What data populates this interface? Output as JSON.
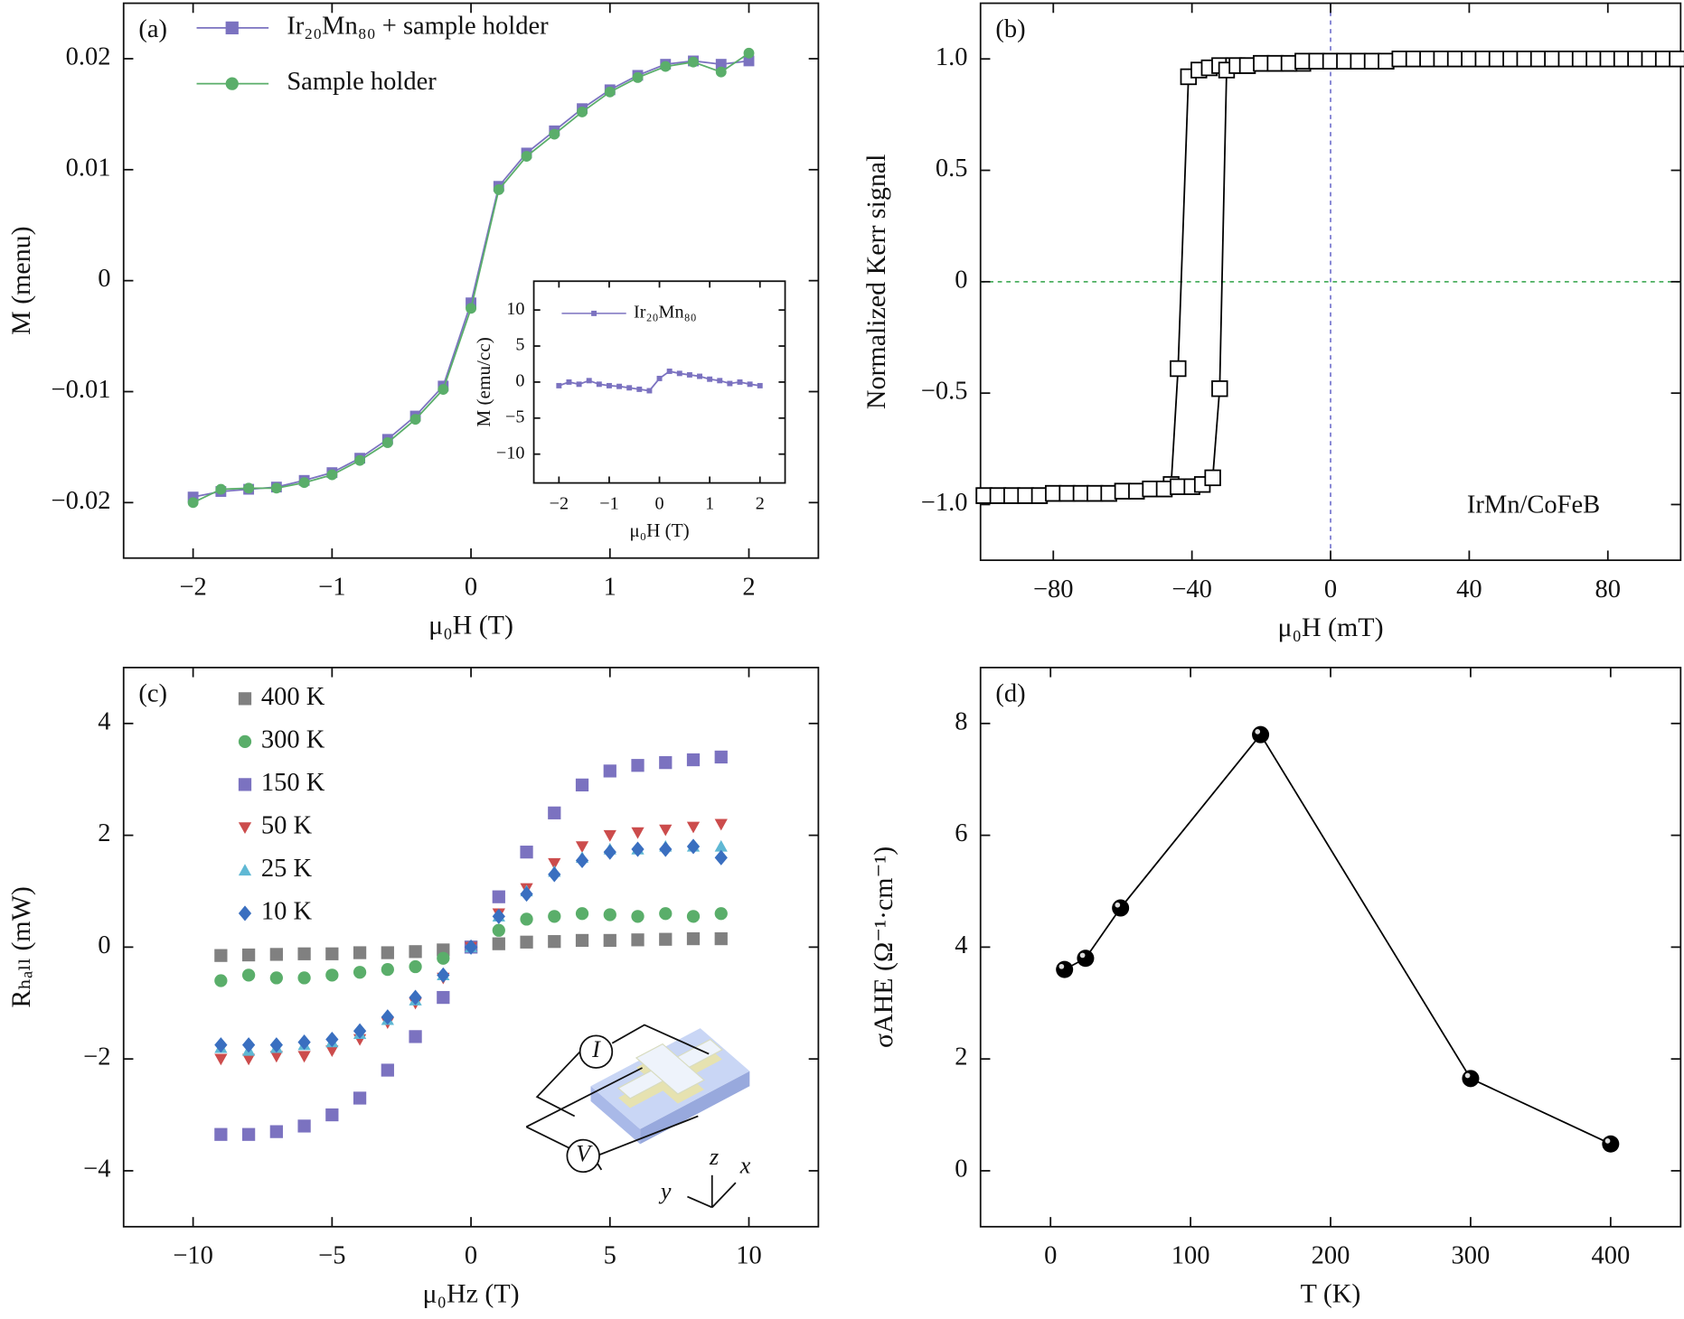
{
  "chart_data": [
    {
      "type": "line",
      "panel_label": "(a)",
      "xlabel": "μ₀H (T)",
      "ylabel": "M (menu)",
      "legend": "upper left",
      "marker_line": true,
      "x": [
        -2,
        -1.8,
        -1.6,
        -1.4,
        -1.2,
        -1,
        -0.8,
        -0.6,
        -0.4,
        -0.2,
        0,
        0.2,
        0.4,
        0.6,
        0.8,
        1,
        1.2,
        1.4,
        1.6,
        1.8,
        2
      ],
      "series": [
        {
          "name": "Ir₂₀Mn₈₀ + sample holder",
          "color": "#7b72c0",
          "marker": "square",
          "values": [
            -0.0195,
            -0.019,
            -0.0188,
            -0.0186,
            -0.018,
            -0.0173,
            -0.016,
            -0.0143,
            -0.0122,
            -0.0095,
            -0.002,
            0.0085,
            0.0115,
            0.0135,
            0.0155,
            0.0172,
            0.0185,
            0.0195,
            0.0198,
            0.0195,
            0.0198
          ]
        },
        {
          "name": "Sample holder",
          "color": "#5aae6a",
          "marker": "circle",
          "values": [
            -0.02,
            -0.0188,
            -0.0187,
            -0.0187,
            -0.0182,
            -0.0175,
            -0.0162,
            -0.0146,
            -0.0125,
            -0.0098,
            -0.0025,
            0.0082,
            0.0112,
            0.0132,
            0.0152,
            0.017,
            0.0183,
            0.0193,
            0.0197,
            0.0188,
            0.0205
          ]
        }
      ],
      "xlim": [
        -2.5,
        2.5
      ],
      "xticks": [
        {
          "value": -2,
          "label": "−2"
        },
        {
          "value": -1,
          "label": "−1"
        },
        0,
        1,
        2
      ],
      "ylim": [
        -0.025,
        0.025
      ],
      "yticks": [
        {
          "value": -0.02,
          "label": "−0.02"
        },
        {
          "value": -0.01,
          "label": "−0.01"
        },
        0,
        0.01,
        0.02
      ]
    },
    {
      "type": "line",
      "xlabel": "μ₀H (T)",
      "ylabel": "M (emu/cc)",
      "legend": "upper left",
      "marker_line": true,
      "x": [
        -2,
        -1.8,
        -1.6,
        -1.4,
        -1.2,
        -1,
        -0.8,
        -0.6,
        -0.4,
        -0.2,
        0,
        0.2,
        0.4,
        0.6,
        0.8,
        1,
        1.2,
        1.4,
        1.6,
        1.8,
        2
      ],
      "series": [
        {
          "name": "Ir₂₀Mn₈₀",
          "color": "#7b72c0",
          "marker": "square",
          "values": [
            -0.5,
            0,
            -0.3,
            0.2,
            -0.3,
            -0.5,
            -0.6,
            -0.8,
            -1,
            -1.2,
            0.5,
            1.5,
            1.2,
            1,
            0.8,
            0.4,
            0.2,
            -0.2,
            0,
            -0.3,
            -0.5
          ]
        }
      ],
      "xlim": [
        -2.5,
        2.5
      ],
      "xticks": [
        {
          "value": -2,
          "label": "−2"
        },
        {
          "value": -1,
          "label": "−1"
        },
        0,
        1,
        2
      ],
      "ylim": [
        -14,
        14
      ],
      "yticks": [
        {
          "value": -10,
          "label": "−10"
        },
        {
          "value": -5,
          "label": "−5"
        },
        0,
        5,
        10
      ]
    },
    {
      "type": "line",
      "panel_label": "(b)",
      "xlabel": "μ₀H (mT)",
      "ylabel": "Normalized Kerr signal",
      "annotation": "IrMn/CoFeB",
      "marker_line": true,
      "reference_lines": [
        {
          "axis": "x",
          "value": 0,
          "color": "#7b7bd0"
        },
        {
          "axis": "y",
          "value": 0,
          "color": "#4caf60"
        }
      ],
      "series": [
        {
          "color": "#000000",
          "marker": "open-square",
          "x": [
            -100,
            -96,
            -92,
            -88,
            -84,
            -80,
            -76,
            -72,
            -68,
            -64,
            -60,
            -56,
            -52,
            -48,
            -46,
            -44,
            -41,
            -38,
            -35,
            -32,
            -28,
            -24,
            -20,
            -16,
            -12,
            -8,
            -4,
            0,
            4,
            8,
            12,
            16,
            20,
            24,
            28,
            32,
            36,
            40,
            44,
            48,
            52,
            56,
            60,
            64,
            68,
            72,
            76,
            80,
            84,
            88,
            92,
            96,
            100
          ],
          "values": [
            -0.96,
            -0.96,
            -0.96,
            -0.96,
            -0.96,
            -0.95,
            -0.95,
            -0.95,
            -0.95,
            -0.95,
            -0.94,
            -0.94,
            -0.93,
            -0.93,
            -0.91,
            -0.39,
            0.92,
            0.95,
            0.96,
            0.97,
            0.97,
            0.97,
            0.98,
            0.98,
            0.98,
            0.98,
            0.99,
            0.99,
            0.99,
            0.99,
            0.99,
            0.99,
            1.0,
            1.0,
            1.0,
            1.0,
            1.0,
            1.0,
            1.0,
            1.0,
            1.0,
            1.0,
            1.0,
            1.0,
            1.0,
            1.0,
            1.0,
            1.0,
            1.0,
            1.0,
            1.0,
            1.0,
            1.0
          ]
        },
        {
          "color": "#000000",
          "marker": "open-square",
          "x": [
            -100,
            -96,
            -92,
            -88,
            -84,
            -80,
            -76,
            -72,
            -68,
            -64,
            -60,
            -56,
            -52,
            -48,
            -44,
            -40,
            -37,
            -34,
            -32,
            -30,
            -27,
            -24,
            -20,
            -16,
            -12,
            -8,
            -4,
            0,
            4,
            8,
            12,
            16,
            20,
            24,
            28,
            32,
            36,
            40,
            44,
            48,
            52,
            56,
            60,
            64,
            68,
            72,
            76,
            80,
            84,
            88,
            92,
            96,
            100
          ],
          "values": [
            -0.96,
            -0.96,
            -0.96,
            -0.96,
            -0.96,
            -0.95,
            -0.95,
            -0.95,
            -0.95,
            -0.95,
            -0.94,
            -0.94,
            -0.93,
            -0.93,
            -0.92,
            -0.92,
            -0.91,
            -0.88,
            -0.48,
            0.95,
            0.97,
            0.97,
            0.98,
            0.98,
            0.98,
            0.99,
            0.99,
            0.99,
            0.99,
            0.99,
            0.99,
            0.99,
            1.0,
            1.0,
            1.0,
            1.0,
            1.0,
            1.0,
            1.0,
            1.0,
            1.0,
            1.0,
            1.0,
            1.0,
            1.0,
            1.0,
            1.0,
            1.0,
            1.0,
            1.0,
            1.0,
            1.0,
            1.0
          ]
        }
      ],
      "xlim": [
        -101,
        101
      ],
      "xticks": [
        {
          "value": -80,
          "label": "−80"
        },
        {
          "value": -40,
          "label": "−40"
        },
        0,
        40,
        80
      ],
      "ylim": [
        -1.25,
        1.25
      ],
      "yticks": [
        {
          "value": -1,
          "label": "−1.0"
        },
        {
          "value": -0.5,
          "label": "−0.5"
        },
        0,
        0.5,
        {
          "value": 1,
          "label": "1.0"
        }
      ]
    },
    {
      "type": "scatter",
      "panel_label": "(c)",
      "xlabel": "μ₀Hz (T)",
      "ylabel": "Rₕₐₗₗ (mW)",
      "legend": "upper left",
      "diagram_labels": [
        "I",
        "V",
        "z",
        "x",
        "y"
      ],
      "x": [
        -9,
        -8,
        -7,
        -6,
        -5,
        -4,
        -3,
        -2,
        -1,
        0,
        1,
        2,
        3,
        4,
        5,
        6,
        7,
        8,
        9
      ],
      "series": [
        {
          "name": "400 K",
          "color": "#808080",
          "marker": "square",
          "values": [
            -0.15,
            -0.14,
            -0.13,
            -0.12,
            -0.12,
            -0.1,
            -0.1,
            -0.08,
            -0.05,
            0,
            0.06,
            0.09,
            0.1,
            0.12,
            0.12,
            0.13,
            0.14,
            0.15,
            0.15
          ]
        },
        {
          "name": "300 K",
          "color": "#5aae6a",
          "marker": "circle",
          "values": [
            -0.6,
            -0.5,
            -0.55,
            -0.55,
            -0.5,
            -0.45,
            -0.4,
            -0.35,
            -0.2,
            0,
            0.3,
            0.5,
            0.55,
            0.6,
            0.58,
            0.55,
            0.6,
            0.55,
            0.6
          ]
        },
        {
          "name": "150 K",
          "color": "#7b72c0",
          "marker": "square",
          "values": [
            -3.35,
            -3.35,
            -3.3,
            -3.2,
            -3.0,
            -2.7,
            -2.2,
            -1.6,
            -0.9,
            0,
            0.9,
            1.7,
            2.4,
            2.9,
            3.15,
            3.25,
            3.3,
            3.35,
            3.4
          ]
        },
        {
          "name": "50 K",
          "color": "#cc4c4c",
          "marker": "triangle-down",
          "values": [
            -2.0,
            -2.0,
            -1.95,
            -1.95,
            -1.85,
            -1.65,
            -1.35,
            -1.0,
            -0.55,
            0,
            0.6,
            1.05,
            1.5,
            1.8,
            2.0,
            2.05,
            2.1,
            2.15,
            2.2
          ]
        },
        {
          "name": "25 K",
          "color": "#5fb8d4",
          "marker": "triangle-up",
          "values": [
            -1.8,
            -1.85,
            -1.8,
            -1.75,
            -1.7,
            -1.55,
            -1.3,
            -0.95,
            -0.5,
            0,
            0.55,
            1.0,
            1.35,
            1.6,
            1.75,
            1.75,
            1.8,
            1.8,
            1.8
          ]
        },
        {
          "name": "10 K",
          "color": "#3a6fc0",
          "marker": "diamond",
          "values": [
            -1.75,
            -1.75,
            -1.75,
            -1.7,
            -1.65,
            -1.5,
            -1.25,
            -0.9,
            -0.5,
            0,
            0.55,
            0.95,
            1.3,
            1.55,
            1.7,
            1.75,
            1.75,
            1.8,
            1.6
          ]
        }
      ],
      "xlim": [
        -12.5,
        12.5
      ],
      "xticks": [
        {
          "value": -10,
          "label": "−10"
        },
        {
          "value": -5,
          "label": "−5"
        },
        0,
        5,
        10
      ],
      "ylim": [
        -5,
        5
      ],
      "yticks": [
        {
          "value": -4,
          "label": "−4"
        },
        {
          "value": -2,
          "label": "−2"
        },
        0,
        2,
        4
      ]
    },
    {
      "type": "line",
      "panel_label": "(d)",
      "xlabel": "T (K)",
      "ylabel": "σAHE (Ω⁻¹·cm⁻¹)",
      "marker_line": true,
      "x": [
        10,
        25,
        50,
        150,
        300,
        400
      ],
      "series": [
        {
          "color": "#000000",
          "marker": "sphere",
          "values": [
            3.6,
            3.8,
            4.7,
            7.8,
            1.65,
            0.48
          ]
        }
      ],
      "xlim": [
        -50,
        450
      ],
      "xticks": [
        0,
        100,
        200,
        300,
        400
      ],
      "ylim": [
        -1,
        9
      ],
      "yticks": [
        0,
        2,
        4,
        6,
        8
      ]
    }
  ]
}
